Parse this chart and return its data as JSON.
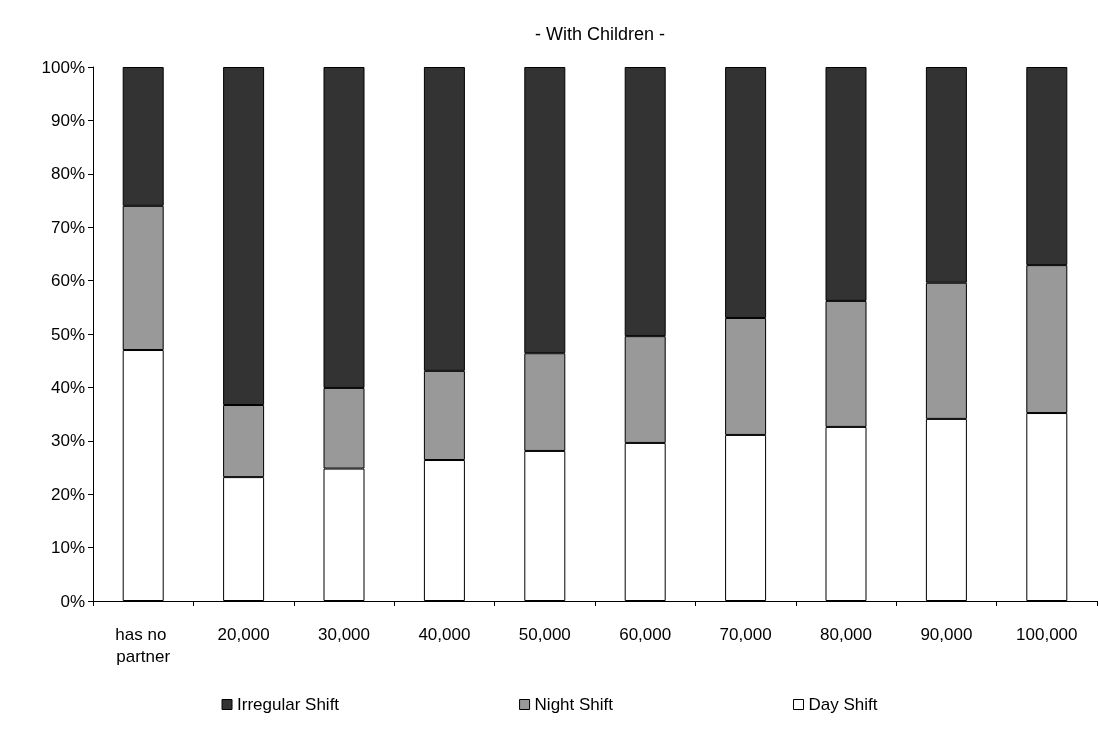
{
  "chart_data": {
    "type": "bar",
    "title": "- With Children -",
    "stacked": true,
    "categories": [
      "has no partner",
      "20,000",
      "30,000",
      "40,000",
      "50,000",
      "60,000",
      "70,000",
      "80,000",
      "90,000",
      "100,000"
    ],
    "series": [
      {
        "name": "Day Shift",
        "color": "#ffffff",
        "values": [
          47,
          23.2,
          24.8,
          26.4,
          28.1,
          29.6,
          31.1,
          32.6,
          34.1,
          35.2
        ]
      },
      {
        "name": "Night Shift",
        "color": "#999999",
        "values": [
          27,
          13.5,
          15.1,
          16.7,
          18.3,
          20,
          21.9,
          23.6,
          25.5,
          27.7
        ]
      },
      {
        "name": "Irregular Shift",
        "color": "#333333",
        "values": [
          26,
          63.3,
          60.1,
          56.9,
          53.6,
          50.4,
          47,
          43.8,
          40.4,
          37.1
        ]
      }
    ],
    "ylim": [
      0,
      100
    ],
    "yticks": [
      {
        "value": 0,
        "label": "0%"
      },
      {
        "value": 10,
        "label": "10%"
      },
      {
        "value": 20,
        "label": "20%"
      },
      {
        "value": 30,
        "label": "30%"
      },
      {
        "value": 40,
        "label": "40%"
      },
      {
        "value": 50,
        "label": "50%"
      },
      {
        "value": 60,
        "label": "60%"
      },
      {
        "value": 70,
        "label": "70%"
      },
      {
        "value": 80,
        "label": "80%"
      },
      {
        "value": 90,
        "label": "90%"
      },
      {
        "value": 100,
        "label": "100%"
      }
    ],
    "grid": false,
    "legend": "bottom"
  }
}
